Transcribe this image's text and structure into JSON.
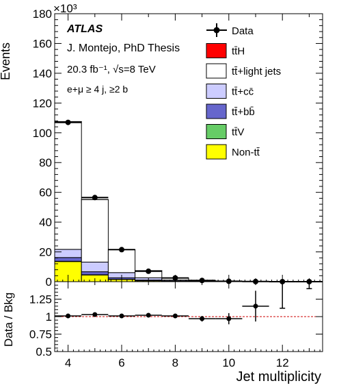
{
  "chart_data": [
    {
      "type": "bar",
      "stacked": true,
      "ylabel": "Events",
      "yexponent": "×10³",
      "ylim": [
        0,
        180
      ],
      "xlim": [
        3.5,
        13.5
      ],
      "yticks": [
        0,
        20,
        40,
        60,
        80,
        100,
        120,
        140,
        160,
        180
      ],
      "yticklabels": [
        "0",
        "20",
        "40",
        "60",
        "80",
        "100",
        "120",
        "140",
        "160",
        "180"
      ],
      "grid": false,
      "legend_position": "top-right",
      "annotations": {
        "atlas": "ATLAS",
        "author": "J. Montejo, PhD Thesis",
        "lumi": "20.3 fb⁻¹, √s=8 TeV",
        "selection": "e+μ ≥ 4 j, ≥2 b"
      },
      "bins": [
        4,
        5,
        6,
        7,
        8,
        9,
        10,
        11,
        12,
        13
      ],
      "series": [
        {
          "name": "Non-tt̄",
          "color": "#ffff00",
          "values": [
            13.5,
            4.5,
            1.5,
            0.6,
            0.25,
            0.1,
            0.05,
            0.02,
            0.01,
            0.005
          ]
        },
        {
          "name": "tt̄V",
          "color": "#66cc66",
          "values": [
            0.2,
            0.15,
            0.08,
            0.04,
            0.02,
            0.01,
            0.005,
            0.002,
            0.001,
            0.0005
          ]
        },
        {
          "name": "tt̄+bb̄",
          "color": "#6666cc",
          "values": [
            2.5,
            2.0,
            1.0,
            0.45,
            0.2,
            0.08,
            0.03,
            0.01,
            0.005,
            0.002
          ]
        },
        {
          "name": "tt̄+cc̄",
          "color": "#ccccff",
          "values": [
            5.5,
            6.5,
            3.5,
            1.5,
            0.6,
            0.25,
            0.09,
            0.03,
            0.01,
            0.005
          ]
        },
        {
          "name": "tt̄+light jets",
          "color": "#ffffff",
          "values": [
            85.8,
            42.0,
            15.4,
            4.8,
            1.4,
            0.38,
            0.09,
            0.02,
            0.005,
            0.002
          ]
        },
        {
          "name": "tt̄H",
          "color": "#ff0000",
          "values": [
            0.05,
            0.04,
            0.03,
            0.015,
            0.008,
            0.003,
            0.001,
            0.0005,
            0.0002,
            0.0001
          ]
        }
      ],
      "data": {
        "name": "Data",
        "x": [
          4,
          5,
          6,
          7,
          8,
          9,
          10,
          11,
          12,
          13
        ],
        "y": [
          107.0,
          56.5,
          21.5,
          7.0,
          2.5,
          0.8,
          0.26,
          0.1,
          0.02,
          0.008
        ]
      }
    },
    {
      "type": "scatter",
      "xlabel": "Jet multiplicity",
      "ylabel": "Data / Bkg",
      "ylim": [
        0.5,
        1.5
      ],
      "xlim": [
        3.5,
        13.5
      ],
      "yticks": [
        0.5,
        0.75,
        1,
        1.25
      ],
      "yticklabels": [
        "0.5",
        "0.75",
        "1",
        "1.25"
      ],
      "xticks": [
        4,
        6,
        8,
        10,
        12
      ],
      "xticklabels": [
        "4",
        "6",
        "8",
        "10",
        "12"
      ],
      "reference_line": 1,
      "x": [
        4,
        5,
        6,
        7,
        8,
        9,
        10,
        11,
        12,
        13
      ],
      "y": [
        1.01,
        1.03,
        1.01,
        1.02,
        1.01,
        0.97,
        0.97,
        1.15,
        null,
        null
      ],
      "yerr": [
        0.005,
        0.008,
        0.012,
        0.02,
        0.03,
        0.04,
        0.08,
        0.22,
        null,
        null
      ]
    }
  ],
  "icons": {
    "data_marker": "filled-circle-marker"
  }
}
